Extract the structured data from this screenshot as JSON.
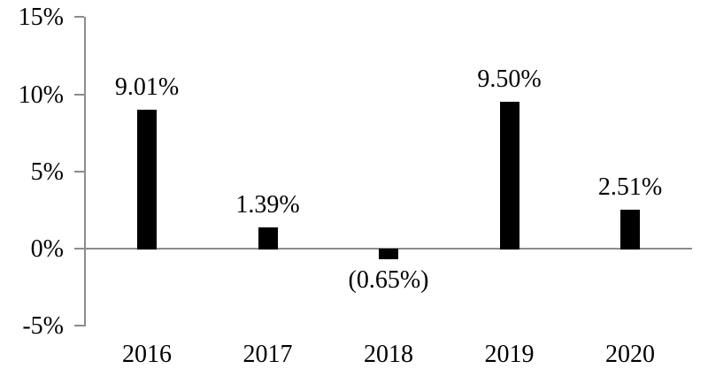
{
  "chart_data": {
    "type": "bar",
    "title": "",
    "xlabel": "",
    "ylabel": "",
    "categories": [
      "2016",
      "2017",
      "2018",
      "2019",
      "2020"
    ],
    "values": [
      9.01,
      1.39,
      -0.65,
      9.5,
      2.51
    ],
    "value_labels": [
      "9.01%",
      "1.39%",
      "(0.65%)",
      "9.50%",
      "2.51%"
    ],
    "ylim": [
      -5,
      15
    ],
    "yticks": [
      15,
      10,
      5,
      0,
      -5
    ],
    "ytick_labels": [
      "15%",
      "10%",
      "5%",
      "0%",
      "-5%"
    ],
    "grid": false,
    "legend_position": "none",
    "bar_color": "#000000",
    "axis_color": "#8c8c8c",
    "text_color": "#000000",
    "negative_label_style": "parentheses-below-bar"
  }
}
